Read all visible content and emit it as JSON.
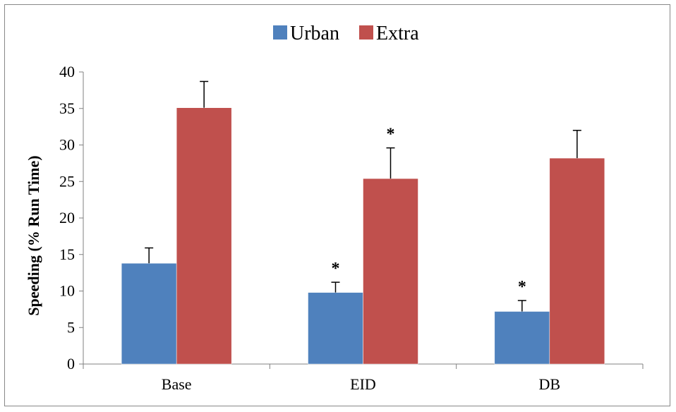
{
  "chart_data": {
    "type": "bar",
    "categories": [
      "Base",
      "EID",
      "DB"
    ],
    "series": [
      {
        "name": "Urban",
        "color": "#4F81BD",
        "values": [
          13.8,
          9.8,
          7.2
        ],
        "error_upper": [
          15.9,
          11.2,
          8.7
        ],
        "markers": [
          "",
          "*",
          "*"
        ]
      },
      {
        "name": "Extra",
        "color": "#C0504D",
        "values": [
          35.1,
          25.4,
          28.2
        ],
        "error_upper": [
          38.7,
          29.6,
          32.0
        ],
        "markers": [
          "",
          "*",
          ""
        ]
      }
    ],
    "title": "",
    "xlabel": "",
    "ylabel": "Speeding (% Run Time)",
    "ylim": [
      0,
      40
    ],
    "yticks": [
      0,
      5,
      10,
      15,
      20,
      25,
      30,
      35,
      40
    ],
    "grid": false,
    "legend_position": "top-center"
  }
}
